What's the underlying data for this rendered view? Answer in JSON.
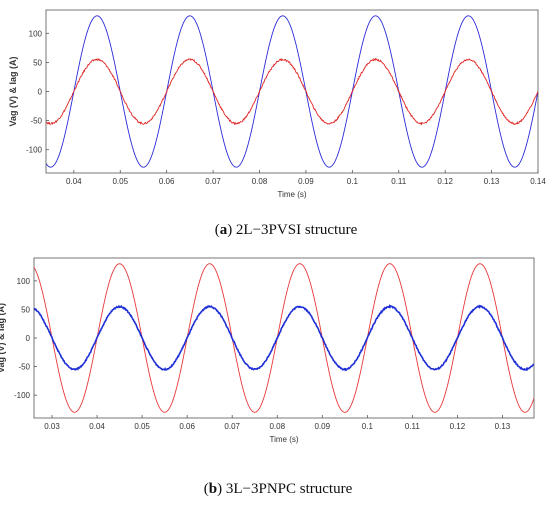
{
  "chart_data": [
    {
      "type": "line",
      "caption_prefix": "(",
      "caption_letter": "a",
      "caption_text": ") 2L−3PVSI structure",
      "xlabel": "Time (s)",
      "ylabel": "Vag (V) & Iag (A)",
      "xlim": [
        0.034,
        0.14
      ],
      "ylim": [
        -140,
        140
      ],
      "xticks": [
        0.04,
        0.05,
        0.06,
        0.07,
        0.08,
        0.09,
        0.1,
        0.11,
        0.12,
        0.13,
        0.14
      ],
      "xtick_labels": [
        "0.04",
        "0.05",
        "0.06",
        "0.07",
        "0.08",
        "0.09",
        "0.1",
        "0.11",
        "0.12",
        "0.13",
        "0.14"
      ],
      "yticks": [
        -100,
        -50,
        0,
        50,
        100
      ],
      "ytick_labels": [
        "-100",
        "-50",
        "0",
        "50",
        "100"
      ],
      "grid": false,
      "series": [
        {
          "color": "#2b2bd9",
          "amplitude": 130,
          "frequency_hz": 50,
          "peak_at": 0.045,
          "noise": 0,
          "stroke": 0.9
        },
        {
          "color": "#e02424",
          "amplitude": 55,
          "frequency_hz": 50,
          "peak_at": 0.045,
          "noise": 1.5,
          "stroke": 0.9
        }
      ]
    },
    {
      "type": "line",
      "caption_prefix": "(",
      "caption_letter": "b",
      "caption_text": ") 3L−3PNPC structure",
      "xlabel": "Time (s)",
      "ylabel": "Vag (V) & Iag (A)",
      "xlim": [
        0.026,
        0.137
      ],
      "ylim": [
        -140,
        140
      ],
      "xticks": [
        0.03,
        0.04,
        0.05,
        0.06,
        0.07,
        0.08,
        0.09,
        0.1,
        0.11,
        0.12,
        0.13
      ],
      "xtick_labels": [
        "0.03",
        "0.04",
        "0.05",
        "0.06",
        "0.07",
        "0.08",
        "0.09",
        "0.1",
        "0.11",
        "0.12",
        "0.13"
      ],
      "yticks": [
        -100,
        -50,
        0,
        50,
        100
      ],
      "ytick_labels": [
        "-100",
        "-50",
        "0",
        "50",
        "100"
      ],
      "grid": false,
      "series": [
        {
          "color": "#e8383a",
          "amplitude": 130,
          "frequency_hz": 50,
          "peak_at": 0.045,
          "noise": 0,
          "stroke": 0.9
        },
        {
          "color": "#1f2fd6",
          "amplitude": 55,
          "frequency_hz": 50,
          "peak_at": 0.045,
          "noise": 1.2,
          "stroke": 1.6
        }
      ]
    }
  ]
}
